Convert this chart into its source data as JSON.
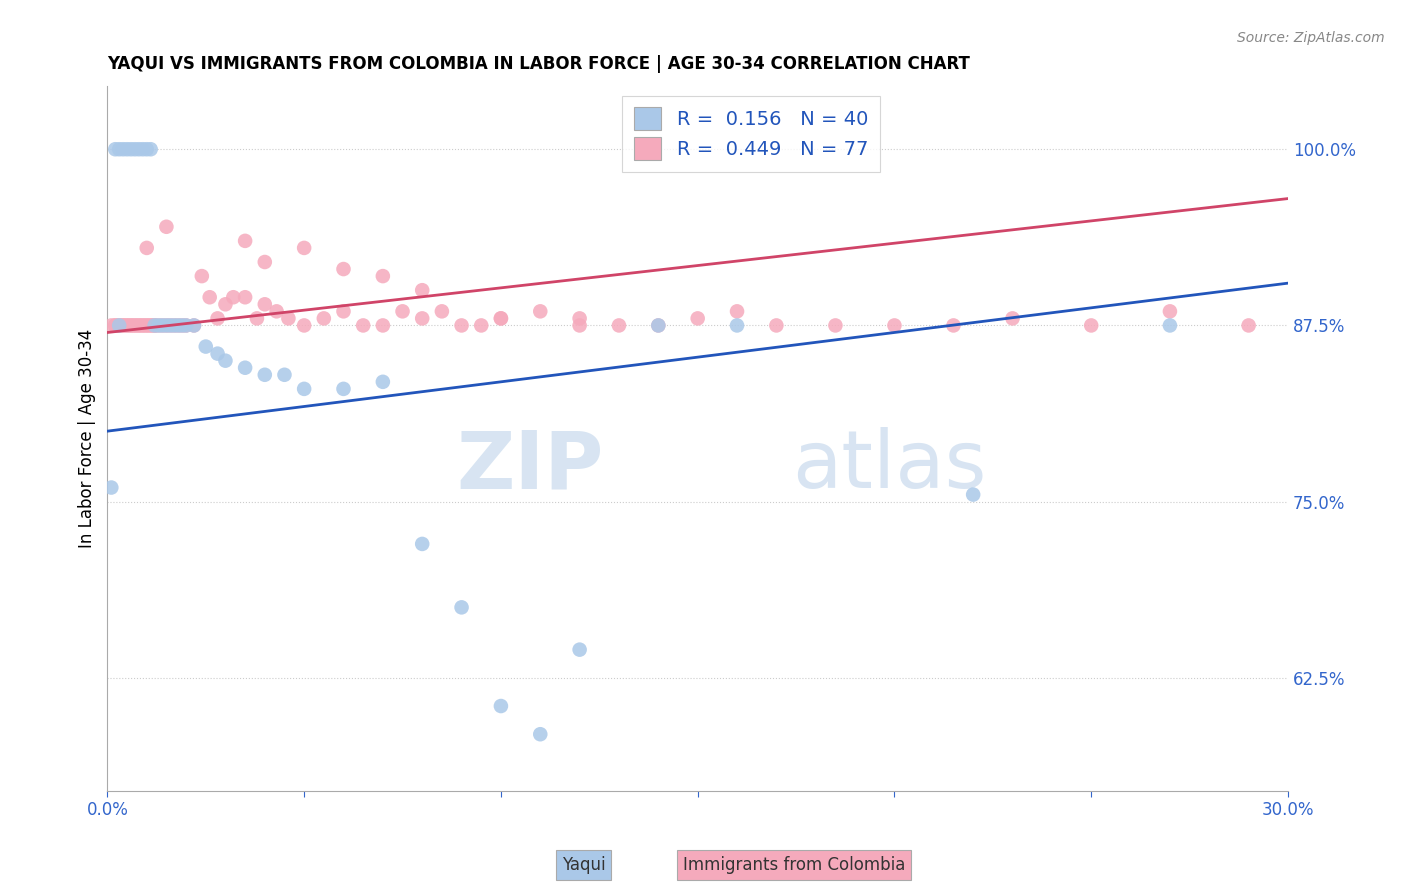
{
  "title": "YAQUI VS IMMIGRANTS FROM COLOMBIA IN LABOR FORCE | AGE 30-34 CORRELATION CHART",
  "source": "Source: ZipAtlas.com",
  "ylabel": "In Labor Force | Age 30-34",
  "ytick_labels": [
    "100.0%",
    "87.5%",
    "75.0%",
    "62.5%"
  ],
  "ytick_values": [
    1.0,
    0.875,
    0.75,
    0.625
  ],
  "xmin": 0.0,
  "xmax": 0.3,
  "ymin": 0.545,
  "ymax": 1.045,
  "watermark_zip": "ZIP",
  "watermark_atlas": "atlas",
  "legend_blue_r": "0.156",
  "legend_blue_n": "40",
  "legend_pink_r": "0.449",
  "legend_pink_n": "77",
  "blue_color": "#aac8e8",
  "blue_line_color": "#2255bb",
  "pink_color": "#f5aabc",
  "pink_line_color": "#d04468",
  "blue_line_x0": 0.0,
  "blue_line_y0": 0.8,
  "blue_line_x1": 0.3,
  "blue_line_y1": 0.905,
  "pink_line_x0": 0.0,
  "pink_line_y0": 0.87,
  "pink_line_x1": 0.3,
  "pink_line_y1": 0.965,
  "blue_x": [
    0.002,
    0.003,
    0.004,
    0.005,
    0.006,
    0.007,
    0.008,
    0.009,
    0.01,
    0.011,
    0.012,
    0.013,
    0.014,
    0.015,
    0.016,
    0.017,
    0.018,
    0.019,
    0.02,
    0.022,
    0.025,
    0.028,
    0.03,
    0.035,
    0.04,
    0.045,
    0.05,
    0.06,
    0.07,
    0.08,
    0.09,
    0.1,
    0.11,
    0.12,
    0.14,
    0.16,
    0.22,
    0.27,
    0.001,
    0.003
  ],
  "blue_y": [
    1.0,
    1.0,
    1.0,
    1.0,
    1.0,
    1.0,
    1.0,
    1.0,
    1.0,
    1.0,
    0.875,
    0.875,
    0.875,
    0.875,
    0.875,
    0.875,
    0.875,
    0.875,
    0.875,
    0.875,
    0.86,
    0.855,
    0.85,
    0.845,
    0.84,
    0.84,
    0.83,
    0.83,
    0.835,
    0.72,
    0.675,
    0.605,
    0.585,
    0.645,
    0.875,
    0.875,
    0.755,
    0.875,
    0.76,
    0.875
  ],
  "pink_x": [
    0.001,
    0.002,
    0.002,
    0.003,
    0.003,
    0.004,
    0.004,
    0.005,
    0.005,
    0.006,
    0.006,
    0.007,
    0.007,
    0.008,
    0.008,
    0.009,
    0.009,
    0.01,
    0.01,
    0.011,
    0.011,
    0.012,
    0.012,
    0.013,
    0.014,
    0.015,
    0.016,
    0.017,
    0.018,
    0.019,
    0.02,
    0.022,
    0.024,
    0.026,
    0.028,
    0.03,
    0.032,
    0.035,
    0.038,
    0.04,
    0.043,
    0.046,
    0.05,
    0.055,
    0.06,
    0.065,
    0.07,
    0.075,
    0.08,
    0.085,
    0.09,
    0.095,
    0.1,
    0.11,
    0.12,
    0.13,
    0.14,
    0.15,
    0.16,
    0.17,
    0.185,
    0.2,
    0.215,
    0.23,
    0.25,
    0.27,
    0.29,
    0.035,
    0.04,
    0.05,
    0.06,
    0.07,
    0.08,
    0.1,
    0.12,
    0.01,
    0.015
  ],
  "pink_y": [
    0.875,
    0.875,
    0.875,
    0.875,
    0.875,
    0.875,
    0.875,
    0.875,
    0.875,
    0.875,
    0.875,
    0.875,
    0.875,
    0.875,
    0.875,
    0.875,
    0.875,
    0.875,
    0.875,
    0.875,
    0.875,
    0.875,
    0.875,
    0.875,
    0.875,
    0.875,
    0.875,
    0.875,
    0.875,
    0.875,
    0.875,
    0.875,
    0.91,
    0.895,
    0.88,
    0.89,
    0.895,
    0.895,
    0.88,
    0.89,
    0.885,
    0.88,
    0.875,
    0.88,
    0.885,
    0.875,
    0.875,
    0.885,
    0.88,
    0.885,
    0.875,
    0.875,
    0.88,
    0.885,
    0.875,
    0.875,
    0.875,
    0.88,
    0.885,
    0.875,
    0.875,
    0.875,
    0.875,
    0.88,
    0.875,
    0.885,
    0.875,
    0.935,
    0.92,
    0.93,
    0.915,
    0.91,
    0.9,
    0.88,
    0.88,
    0.93,
    0.945
  ]
}
